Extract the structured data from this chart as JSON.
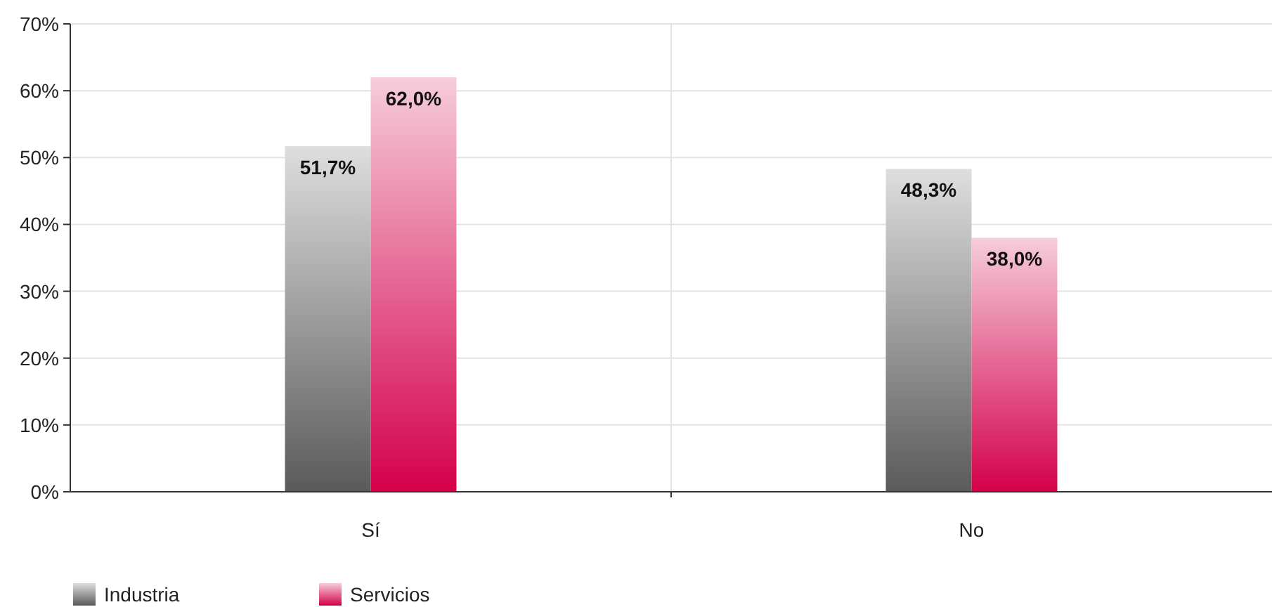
{
  "chart_data": {
    "type": "bar",
    "categories": [
      "Sí",
      "No"
    ],
    "series": [
      {
        "name": "Industria",
        "color": "#5a5a5a",
        "values": [
          51.7,
          48.3
        ],
        "value_labels": [
          "51,7%",
          "48,3%"
        ]
      },
      {
        "name": "Servicios",
        "color": "#d4004a",
        "values": [
          62.0,
          38.0
        ],
        "value_labels": [
          "62,0%",
          "38,0%"
        ]
      }
    ],
    "ylim": [
      0,
      70
    ],
    "yticks": [
      {
        "value": 0,
        "label": "0%"
      },
      {
        "value": 10,
        "label": "10%"
      },
      {
        "value": 20,
        "label": "20%"
      },
      {
        "value": 30,
        "label": "30%"
      },
      {
        "value": 40,
        "label": "40%"
      },
      {
        "value": 50,
        "label": "50%"
      },
      {
        "value": 60,
        "label": "60%"
      },
      {
        "value": 70,
        "label": "70%"
      }
    ],
    "grid": true,
    "legend": "bottom"
  }
}
